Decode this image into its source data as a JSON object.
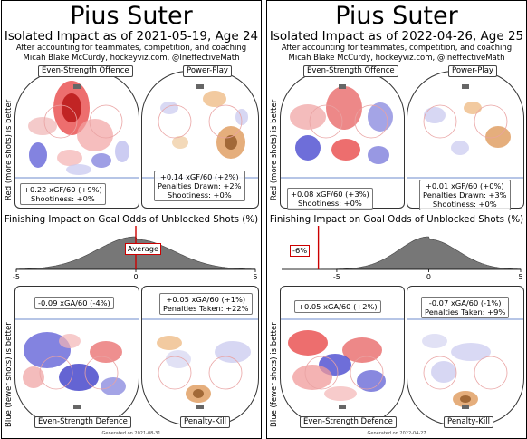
{
  "panels": [
    {
      "title": "Pius Suter",
      "subtitle": "Isolated Impact as of 2021-05-19, Age 24",
      "credit_line1": "After accounting for teammates, competition, and coaching",
      "credit_line2": "Micah Blake McCurdy, hockeyviz.com, @IneffectiveMath",
      "ev_offence_label": "Even-Strength Offence",
      "pp_label": "Power-Play",
      "ev_defence_label": "Even-Strength Defence",
      "pk_label": "Penalty-Kill",
      "y_label_top": "Red (more shots) is better",
      "y_label_bottom": "Blue (fewer shots) is better",
      "ev_off_stat": [
        "+0.22 xGF/60 (+9%)",
        "Shootiness: +0%"
      ],
      "pp_stat": [
        "+0.14 xGF/60 (+2%)",
        "Penalties Drawn: +2%",
        "Shootiness: +0%"
      ],
      "ev_def_stat": [
        "-0.09 xGA/60 (-4%)"
      ],
      "pk_stat": [
        "+0.05 xGA/60 (+1%)",
        "Penalties Taken: +22%"
      ],
      "finishing_title": "Finishing Impact on Goal Odds of Unblocked Shots (%)",
      "marker_label": "Average",
      "ticks": [
        "-5",
        "0",
        "5"
      ],
      "generated": "Generated on 2021-08-31"
    },
    {
      "title": "Pius Suter",
      "subtitle": "Isolated Impact as of 2022-04-26, Age 25",
      "credit_line1": "After accounting for teammates, competition, and coaching",
      "credit_line2": "Micah Blake McCurdy, hockeyviz.com, @IneffectiveMath",
      "ev_offence_label": "Even-Strength Offence",
      "pp_label": "Power-Play",
      "ev_defence_label": "Even-Strength Defence",
      "pk_label": "Penalty-Kill",
      "y_label_top": "Red (more shots) is better",
      "y_label_bottom": "Blue (fewer shots) is better",
      "ev_off_stat": [
        "+0.08 xGF/60 (+3%)",
        "Shootiness: +0%"
      ],
      "pp_stat": [
        "+0.01 xGF/60 (+0%)",
        "Penalties Drawn: +3%",
        "Shootiness: +0%"
      ],
      "ev_def_stat": [
        "+0.05 xGA/60 (+2%)"
      ],
      "pk_stat": [
        "-0.07 xGA/60 (-1%)",
        "Penalties Taken: +9%"
      ],
      "finishing_title": "Finishing Impact on Goal Odds of Unblocked Shots (%)",
      "marker_label": "-6%",
      "ticks": [
        "-5",
        "0",
        "5"
      ],
      "generated": "Generated on 2022-04-27"
    }
  ],
  "chart_data": [
    {
      "type": "area",
      "title": "Finishing Impact on Goal Odds of Unblocked Shots (%)",
      "xlim": [
        -5,
        5
      ],
      "xticks": [
        -5,
        0,
        5
      ],
      "marker": {
        "label": "Average",
        "x": 0
      },
      "colors": {
        "fill": "#777777",
        "marker": "#cc0000"
      }
    },
    {
      "type": "area",
      "title": "Finishing Impact on Goal Odds of Unblocked Shots (%)",
      "xlim": [
        -8,
        5
      ],
      "xticks": [
        -5,
        0,
        5
      ],
      "marker": {
        "label": "-6%",
        "x": -6
      },
      "colors": {
        "fill": "#777777",
        "marker": "#cc0000"
      }
    }
  ]
}
